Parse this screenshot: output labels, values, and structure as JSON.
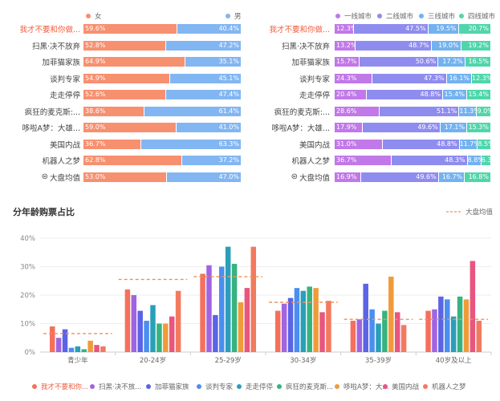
{
  "gender_chart": {
    "legend": [
      "女",
      "男"
    ],
    "colors": [
      "#f7906f",
      "#82b6f2"
    ],
    "categories": [
      "我才不要和你做...",
      "扫黑·决不放弃",
      "加菲猫家族",
      "谈判专家",
      "走走停停",
      "疯狂的麦克斯:...",
      "哆啦A梦：大雄...",
      "美国内战",
      "机器人之梦",
      "大盘均值"
    ],
    "female_labels": [
      "59.6%",
      "52.8%",
      "64.9%",
      "54.9%",
      "52.6%",
      "38.6%",
      "59.0%",
      "36.7%",
      "62.8%",
      "53.0%"
    ],
    "male_labels": [
      "40.4%",
      "47.2%",
      "35.1%",
      "45.1%",
      "47.4%",
      "61.4%",
      "41.0%",
      "63.3%",
      "37.2%",
      "47.0%"
    ],
    "female_values": [
      59.6,
      52.8,
      64.9,
      54.9,
      52.6,
      38.6,
      59.0,
      36.7,
      62.8,
      53.0
    ]
  },
  "city_chart": {
    "legend": [
      "一线城市",
      "二线城市",
      "三线城市",
      "四线城市"
    ],
    "colors": [
      "#c178e8",
      "#8f8cf0",
      "#73b2f0",
      "#4fd6ab"
    ],
    "categories": [
      "我才不要和你做...",
      "扫黑·决不放弃",
      "加菲猫家族",
      "谈判专家",
      "走走停停",
      "疯狂的麦克斯:...",
      "哆啦A梦：大雄...",
      "美国内战",
      "机器人之梦",
      "大盘均值"
    ],
    "labels": [
      [
        "12.3%",
        "47.5%",
        "19.5%",
        "20.7%"
      ],
      [
        "13.2%",
        "48.7%",
        "19.0%",
        "19.2%"
      ],
      [
        "15.7%",
        "50.6%",
        "17.2%",
        "16.5%"
      ],
      [
        "24.3%",
        "47.3%",
        "16.1%",
        "12.3%"
      ],
      [
        "20.4%",
        "48.8%",
        "15.4%",
        "15.4%"
      ],
      [
        "28.6%",
        "51.1%",
        "11.3%",
        "9.0%"
      ],
      [
        "17.9%",
        "49.6%",
        "17.1%",
        "15.3%"
      ],
      [
        "31.0%",
        "48.8%",
        "11.7%",
        "8.5%"
      ],
      [
        "36.7%",
        "48.3%",
        "8.8%",
        "6.3%"
      ],
      [
        "16.9%",
        "49.6%",
        "16.7%",
        "16.8%"
      ]
    ],
    "values": [
      [
        12.3,
        47.5,
        19.5,
        20.7
      ],
      [
        13.2,
        48.7,
        19.0,
        19.2
      ],
      [
        15.7,
        50.6,
        17.2,
        16.5
      ],
      [
        24.3,
        47.3,
        16.1,
        12.3
      ],
      [
        20.4,
        48.8,
        15.4,
        15.4
      ],
      [
        28.6,
        51.1,
        11.3,
        9.0
      ],
      [
        17.9,
        49.6,
        17.1,
        15.3
      ],
      [
        31.0,
        48.8,
        11.7,
        8.5
      ],
      [
        36.7,
        48.3,
        8.8,
        6.3
      ],
      [
        16.9,
        49.6,
        16.7,
        16.8
      ]
    ]
  },
  "avg_icon_glyph": "⊜",
  "chart_data": {
    "type": "bar",
    "title": "分年龄购票占比",
    "ylim": [
      0,
      40
    ],
    "yticks": [
      "0%",
      "10%",
      "20%",
      "30%",
      "40%"
    ],
    "categories": [
      "青少年",
      "20-24岁",
      "25-29岁",
      "30-34岁",
      "35-39岁",
      "40岁及以上"
    ],
    "benchmark": {
      "name": "大盘均值",
      "values": [
        6.5,
        25.5,
        26.5,
        17.5,
        11.5,
        11.5
      ],
      "color": "#f0905c"
    },
    "series": [
      {
        "name": "我才不要和你...",
        "color": "#f66f5c",
        "values": [
          9.0,
          22.0,
          27.5,
          14.5,
          11.0,
          14.5
        ]
      },
      {
        "name": "扫黑·决不放...",
        "color": "#a064e0",
        "values": [
          5.0,
          20.0,
          30.5,
          17.0,
          11.5,
          15.0
        ]
      },
      {
        "name": "加菲猫家族",
        "color": "#5b63e6",
        "values": [
          8.0,
          14.5,
          13.0,
          19.0,
          24.0,
          19.5
        ]
      },
      {
        "name": "谈判专家",
        "color": "#4a8ef0",
        "values": [
          1.5,
          11.0,
          30.0,
          22.5,
          15.0,
          18.5
        ]
      },
      {
        "name": "走走停停",
        "color": "#2a9fb8",
        "values": [
          2.0,
          16.5,
          37.0,
          21.5,
          10.0,
          12.5
        ]
      },
      {
        "name": "疯狂的麦克斯...",
        "color": "#36b37e",
        "values": [
          1.0,
          10.0,
          31.0,
          23.0,
          14.5,
          19.5
        ]
      },
      {
        "name": "哆啦A梦：大...",
        "color": "#f09b3a",
        "values": [
          4.0,
          10.0,
          17.5,
          22.5,
          26.5,
          18.5
        ]
      },
      {
        "name": "美国内战",
        "color": "#e8557e",
        "values": [
          2.5,
          12.5,
          22.5,
          14.0,
          14.0,
          32.0
        ]
      },
      {
        "name": "机器人之梦",
        "color": "#f27a5e",
        "values": [
          2.0,
          21.5,
          37.0,
          18.0,
          9.5,
          11.0
        ]
      }
    ]
  }
}
